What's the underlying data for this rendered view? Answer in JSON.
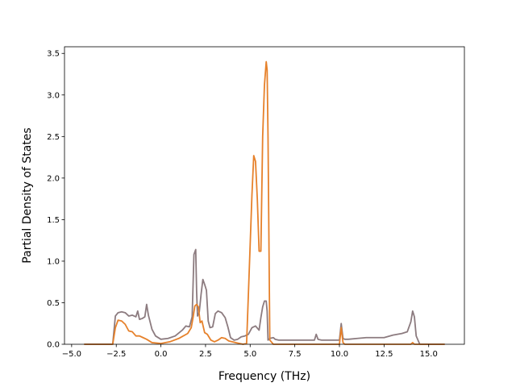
{
  "chart_data": {
    "type": "line",
    "title": "",
    "xlabel": "Frequency (THz)",
    "ylabel": "Partial Density of States",
    "xlim": [
      -5.4,
      17.0
    ],
    "ylim": [
      0.0,
      3.58
    ],
    "xticks": [
      -5.0,
      -2.5,
      0.0,
      2.5,
      5.0,
      7.5,
      10.0,
      12.5,
      15.0
    ],
    "xtick_labels": [
      "−5.0",
      "−2.5",
      "0.0",
      "2.5",
      "5.0",
      "7.5",
      "10.0",
      "12.5",
      "15.0"
    ],
    "yticks": [
      0.0,
      0.5,
      1.0,
      1.5,
      2.0,
      2.5,
      3.0,
      3.5
    ],
    "ytick_labels": [
      "0.0",
      "0.5",
      "1.0",
      "1.5",
      "2.0",
      "2.5",
      "3.0",
      "3.5"
    ],
    "grid": false,
    "series": [
      {
        "color": "#8c7b7f",
        "x": [
          -4.3,
          -2.7,
          -2.55,
          -2.4,
          -2.2,
          -2.0,
          -1.8,
          -1.6,
          -1.4,
          -1.3,
          -1.2,
          -1.05,
          -0.9,
          -0.8,
          -0.7,
          -0.5,
          -0.3,
          0.0,
          0.4,
          0.8,
          1.2,
          1.4,
          1.6,
          1.75,
          1.85,
          1.95,
          2.0,
          2.05,
          2.15,
          2.25,
          2.35,
          2.45,
          2.55,
          2.65,
          2.75,
          2.9,
          3.05,
          3.2,
          3.4,
          3.6,
          3.75,
          3.9,
          4.1,
          4.3,
          4.5,
          4.7,
          4.9,
          5.1,
          5.3,
          5.5,
          5.6,
          5.7,
          5.8,
          5.9,
          5.95,
          6.0,
          6.1,
          6.3,
          6.4,
          6.6,
          7.0,
          8.0,
          8.6,
          8.7,
          8.8,
          9.0,
          9.5,
          10.0,
          10.1,
          10.2,
          10.3,
          10.5,
          11.0,
          11.5,
          12.0,
          12.5,
          13.0,
          13.5,
          13.8,
          14.0,
          14.1,
          14.2,
          14.3,
          14.5,
          15.0,
          15.9
        ],
        "y": [
          0.0,
          0.0,
          0.34,
          0.38,
          0.39,
          0.38,
          0.34,
          0.35,
          0.33,
          0.4,
          0.3,
          0.31,
          0.33,
          0.48,
          0.35,
          0.18,
          0.1,
          0.06,
          0.07,
          0.1,
          0.17,
          0.22,
          0.21,
          0.33,
          1.08,
          1.14,
          0.64,
          0.34,
          0.39,
          0.6,
          0.78,
          0.72,
          0.65,
          0.28,
          0.2,
          0.21,
          0.37,
          0.4,
          0.38,
          0.32,
          0.21,
          0.08,
          0.05,
          0.06,
          0.09,
          0.1,
          0.12,
          0.2,
          0.22,
          0.17,
          0.32,
          0.45,
          0.52,
          0.52,
          0.4,
          0.05,
          0.07,
          0.08,
          0.06,
          0.05,
          0.05,
          0.05,
          0.05,
          0.12,
          0.06,
          0.05,
          0.05,
          0.05,
          0.25,
          0.07,
          0.06,
          0.06,
          0.07,
          0.08,
          0.08,
          0.08,
          0.11,
          0.13,
          0.15,
          0.27,
          0.4,
          0.33,
          0.1,
          0.0,
          0.0,
          0.0
        ]
      },
      {
        "color": "#e6812b",
        "x": [
          -4.3,
          -2.7,
          -2.55,
          -2.4,
          -2.2,
          -2.0,
          -1.8,
          -1.6,
          -1.4,
          -1.2,
          -1.0,
          -0.8,
          -0.5,
          0.0,
          0.5,
          1.0,
          1.5,
          1.7,
          1.8,
          1.9,
          2.0,
          2.1,
          2.2,
          2.3,
          2.45,
          2.6,
          2.8,
          3.0,
          3.2,
          3.4,
          3.6,
          3.8,
          4.2,
          4.6,
          4.8,
          4.9,
          5.0,
          5.1,
          5.2,
          5.3,
          5.4,
          5.5,
          5.6,
          5.7,
          5.8,
          5.9,
          5.95,
          6.0,
          6.1,
          6.3,
          7.0,
          8.0,
          9.0,
          10.0,
          10.1,
          10.2,
          10.3,
          11.0,
          12.0,
          13.0,
          14.0,
          14.1,
          14.2,
          14.3,
          14.5,
          15.9
        ],
        "y": [
          0.0,
          0.0,
          0.2,
          0.29,
          0.28,
          0.24,
          0.16,
          0.15,
          0.1,
          0.1,
          0.08,
          0.06,
          0.02,
          0.01,
          0.03,
          0.07,
          0.13,
          0.2,
          0.32,
          0.46,
          0.48,
          0.45,
          0.26,
          0.28,
          0.14,
          0.12,
          0.05,
          0.03,
          0.05,
          0.08,
          0.07,
          0.04,
          0.02,
          0.0,
          0.01,
          0.6,
          1.2,
          1.8,
          2.27,
          2.2,
          1.75,
          1.12,
          1.12,
          2.5,
          3.12,
          3.4,
          3.3,
          2.5,
          0.05,
          0.0,
          0.0,
          0.0,
          0.0,
          0.0,
          0.2,
          0.02,
          0.0,
          0.0,
          0.0,
          0.0,
          0.0,
          0.02,
          0.0,
          0.0,
          0.0,
          0.0
        ]
      }
    ]
  }
}
